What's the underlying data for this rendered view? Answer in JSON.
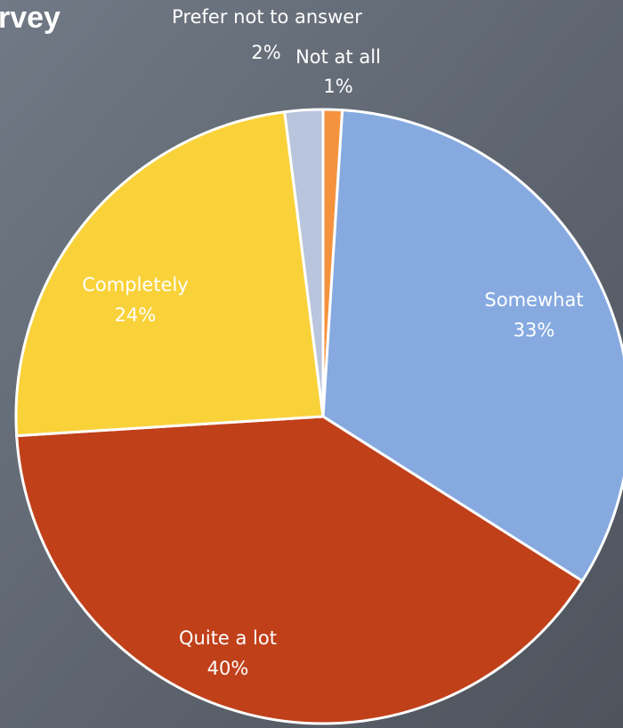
{
  "chart_data": {
    "type": "pie",
    "title": "rvey",
    "categories": [
      "Not at all",
      "Somewhat",
      "Quite a lot",
      "Completely",
      "Prefer not to answer"
    ],
    "values": [
      1,
      33,
      40,
      24,
      2
    ],
    "value_labels": [
      "1%",
      "33%",
      "40%",
      "24%",
      "2%"
    ],
    "colors": [
      "#f5923e",
      "#86aae0",
      "#c0401a",
      "#f9d23a",
      "#b9c5dc"
    ]
  }
}
